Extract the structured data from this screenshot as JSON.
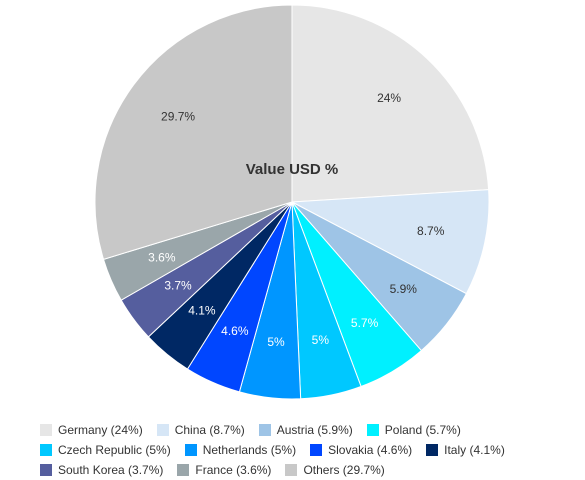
{
  "chart_data": {
    "type": "pie",
    "title": "Value USD %",
    "slices": [
      {
        "label": "Germany",
        "value": 24,
        "display": "24%",
        "legend": "Germany (24%)",
        "color": "#e6e6e6",
        "text_color": "#333333"
      },
      {
        "label": "China",
        "value": 8.7,
        "display": "8.7%",
        "legend": "China (8.7%)",
        "color": "#d6e6f6",
        "text_color": "#333333"
      },
      {
        "label": "Austria",
        "value": 5.9,
        "display": "5.9%",
        "legend": "Austria (5.9%)",
        "color": "#9ec4e6",
        "text_color": "#333333"
      },
      {
        "label": "Poland",
        "value": 5.7,
        "display": "5.7%",
        "legend": "Poland (5.7%)",
        "color": "#00f0ff",
        "text_color": "#ffffff"
      },
      {
        "label": "Czech Republic",
        "value": 5,
        "display": "5%",
        "legend": "Czech Republic (5%)",
        "color": "#00c8ff",
        "text_color": "#ffffff"
      },
      {
        "label": "Netherlands",
        "value": 5,
        "display": "5%",
        "legend": "Netherlands (5%)",
        "color": "#0096ff",
        "text_color": "#ffffff"
      },
      {
        "label": "Slovakia",
        "value": 4.6,
        "display": "4.6%",
        "legend": "Slovakia (4.6%)",
        "color": "#0046ff",
        "text_color": "#ffffff"
      },
      {
        "label": "Italy",
        "value": 4.1,
        "display": "4.1%",
        "legend": "Italy (4.1%)",
        "color": "#002864",
        "text_color": "#ffffff"
      },
      {
        "label": "South Korea",
        "value": 3.7,
        "display": "3.7%",
        "legend": "South Korea (3.7%)",
        "color": "#555e9e",
        "text_color": "#ffffff"
      },
      {
        "label": "France",
        "value": 3.6,
        "display": "3.6%",
        "legend": "France (3.6%)",
        "color": "#9aa6aa",
        "text_color": "#ffffff"
      },
      {
        "label": "Others",
        "value": 29.7,
        "display": "29.7%",
        "legend": "Others (29.7%)",
        "color": "#c8c8c8",
        "text_color": "#333333"
      }
    ],
    "legend_position": "bottom"
  }
}
